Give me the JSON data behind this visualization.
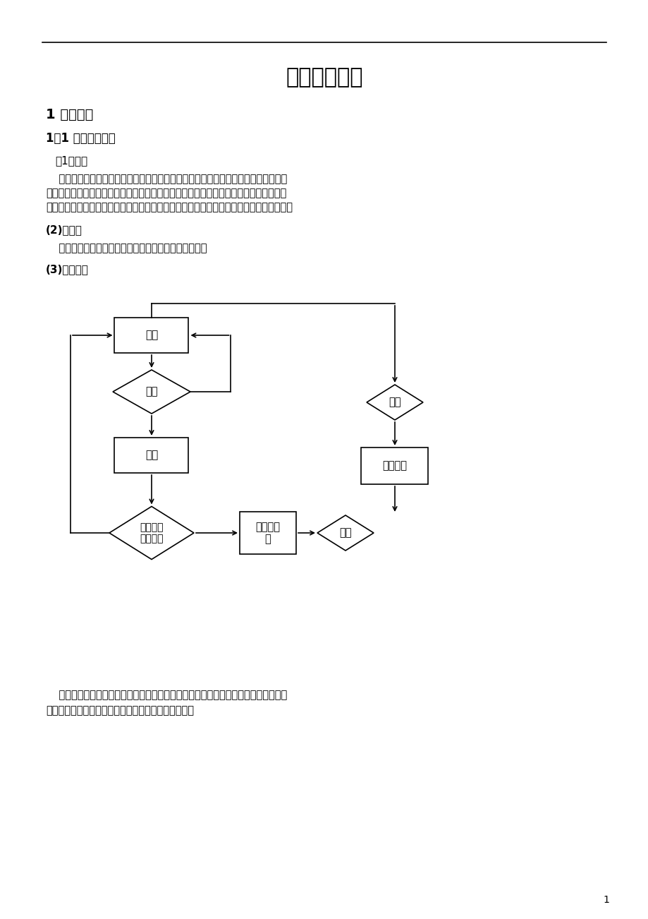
{
  "title": "图书管理系统",
  "section1": "1 需求分析",
  "section11": "1．1 需求分析过程",
  "subsec1": "（1）流程",
  "para1_l1": "    读者到图书借阅处查询图书，看看是否有满足读者要求的图书。如果有满足读者要求",
  "para1_l2": "的图书，查看该图书是否在馆，如果在馆，则图书管理员在系统记录读者信息并记录借出",
  "para1_l3": "图书信息，如果不在馆，通知读者。如果读者要求的图书无法提供，则通知读者无法满足。",
  "subsec2": "(2)功能：",
  "para2": "    实现图书的查询，借入和归还功能，而且能保存记录。",
  "subsec3": "(3)流程图：",
  "para3_l1": "    读者借阅图书，系统查询图书是否在馆。图书已借出，显示已借出；未借出显示下一",
  "para3_l2": "步，图书管理员管理图书，登记读者信息，借出图书。",
  "page_num": "1",
  "bg_color": "#ffffff",
  "text_color": "#000000",
  "line_color": "#000000",
  "box_color": "#ffffff",
  "box_border": "#000000"
}
